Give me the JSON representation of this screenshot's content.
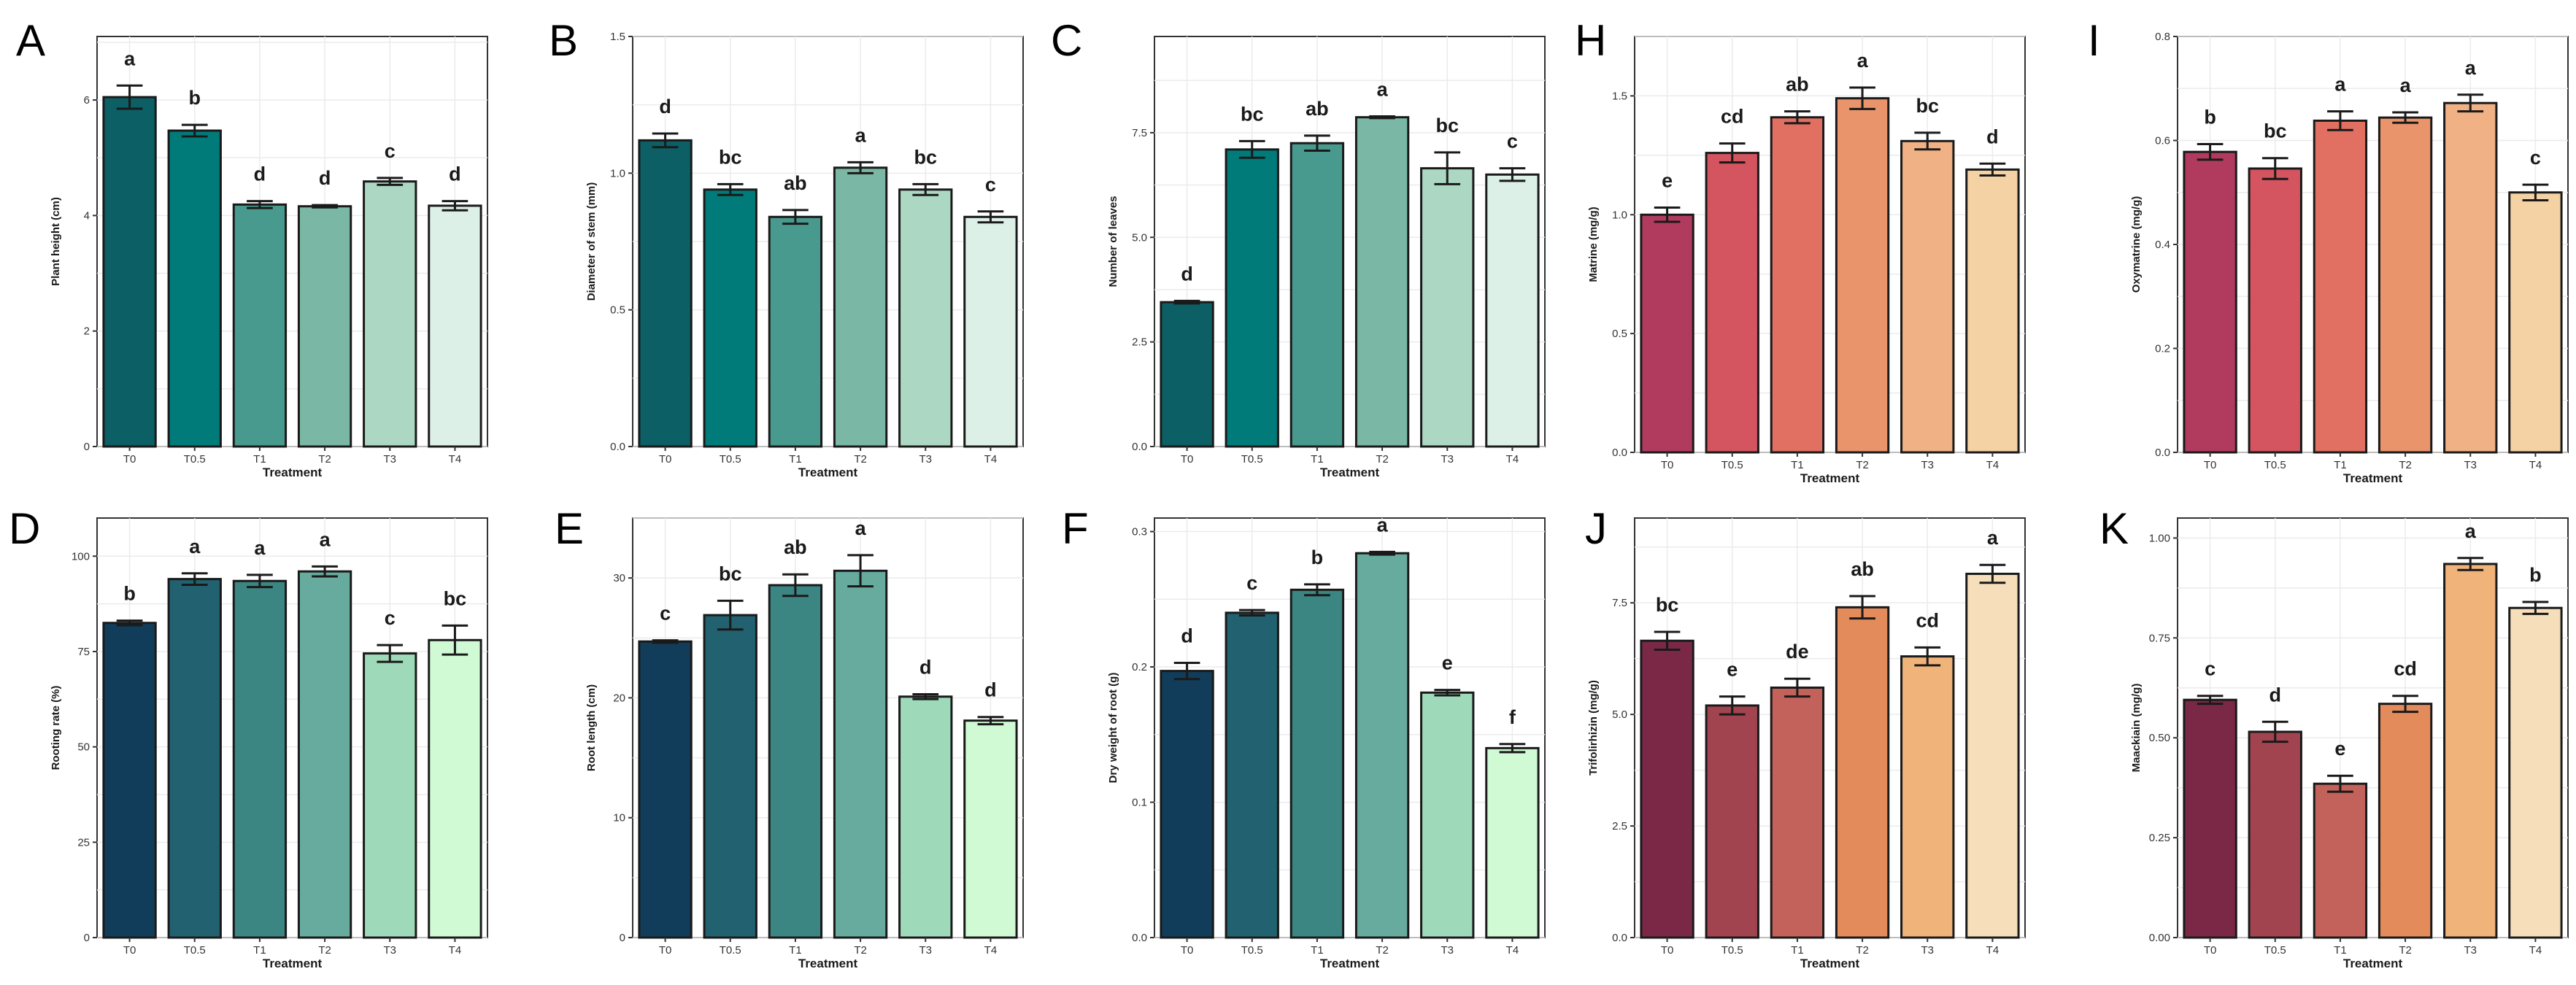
{
  "figure": {
    "x_axis_title": "Treatment",
    "categories": [
      "T0",
      "T0.5",
      "T1",
      "T2",
      "T3",
      "T4"
    ]
  },
  "chart_data": [
    {
      "panel": "A",
      "type": "bar",
      "ylabel": "Plant height (cm)",
      "xlabel": "Treatment",
      "categories": [
        "T0",
        "T0.5",
        "T1",
        "T2",
        "T3",
        "T4"
      ],
      "values": [
        6.05,
        5.47,
        4.19,
        4.16,
        4.59,
        4.17
      ],
      "errors": [
        0.2,
        0.1,
        0.06,
        0.02,
        0.06,
        0.08
      ],
      "labels": [
        "a",
        "b",
        "d",
        "d",
        "c",
        "d"
      ],
      "ylim": [
        0,
        7.1
      ],
      "yticks": [
        0,
        2,
        4,
        6
      ],
      "ytick_labels": [
        "0",
        "2",
        "4",
        "6"
      ],
      "colors": [
        "#0b5f65",
        "#007b7a",
        "#499a8e",
        "#7ab8a5",
        "#acd8c3",
        "#ddf0e7"
      ]
    },
    {
      "panel": "B",
      "type": "bar",
      "ylabel": "Diameter of stem (mm)",
      "xlabel": "Treatment",
      "categories": [
        "T0",
        "T0.5",
        "T1",
        "T2",
        "T3",
        "T4"
      ],
      "values": [
        1.12,
        0.94,
        0.84,
        1.02,
        0.94,
        0.84
      ],
      "errors": [
        0.025,
        0.02,
        0.025,
        0.02,
        0.02,
        0.02
      ],
      "labels": [
        "d",
        "bc",
        "ab",
        "a",
        "bc",
        "c"
      ],
      "ylim": [
        0,
        1.5
      ],
      "yticks": [
        0,
        0.5,
        1.0,
        1.5
      ],
      "ytick_labels": [
        "0.0",
        "0.5",
        "1.0",
        "1.5"
      ],
      "colors": [
        "#0b5f65",
        "#007b7a",
        "#499a8e",
        "#7ab8a5",
        "#acd8c3",
        "#ddf0e7"
      ]
    },
    {
      "panel": "C",
      "type": "bar",
      "ylabel": "Number of leaves",
      "xlabel": "Treatment",
      "categories": [
        "T0",
        "T0.5",
        "T1",
        "T2",
        "T3",
        "T4"
      ],
      "values": [
        3.45,
        7.1,
        7.25,
        7.87,
        6.65,
        6.5
      ],
      "errors": [
        0.03,
        0.2,
        0.18,
        0.02,
        0.38,
        0.15
      ],
      "labels": [
        "d",
        "bc",
        "ab",
        "a",
        "bc",
        "c"
      ],
      "ylim": [
        0,
        9.8
      ],
      "yticks": [
        0,
        2.5,
        5,
        7.5
      ],
      "ytick_labels": [
        "0.0",
        "2.5",
        "5.0",
        "7.5"
      ],
      "colors": [
        "#0b5f65",
        "#007b7a",
        "#499a8e",
        "#7ab8a5",
        "#acd8c3",
        "#ddf0e7"
      ]
    },
    {
      "panel": "H",
      "type": "bar",
      "ylabel": "Matrine (mg/g)",
      "xlabel": "Treatment",
      "categories": [
        "T0",
        "T0.5",
        "T1",
        "T2",
        "T3",
        "T4"
      ],
      "values": [
        1.0,
        1.26,
        1.41,
        1.49,
        1.31,
        1.19
      ],
      "errors": [
        0.03,
        0.04,
        0.025,
        0.045,
        0.035,
        0.025
      ],
      "labels": [
        "e",
        "cd",
        "ab",
        "a",
        "bc",
        "d"
      ],
      "ylim": [
        0,
        1.75
      ],
      "yticks": [
        0,
        0.5,
        1.0,
        1.5
      ],
      "ytick_labels": [
        "0.0",
        "0.5",
        "1.0",
        "1.5"
      ],
      "colors": [
        "#b13b5e",
        "#d4545f",
        "#e16f62",
        "#ea946c",
        "#f0b185",
        "#f5d2a4"
      ]
    },
    {
      "panel": "I",
      "type": "bar",
      "ylabel": "Oxymatrine (mg/g)",
      "xlabel": "Treatment",
      "categories": [
        "T0",
        "T0.5",
        "T1",
        "T2",
        "T3",
        "T4"
      ],
      "values": [
        0.578,
        0.546,
        0.638,
        0.644,
        0.672,
        0.5
      ],
      "errors": [
        0.015,
        0.02,
        0.018,
        0.01,
        0.016,
        0.015
      ],
      "labels": [
        "b",
        "bc",
        "a",
        "a",
        "a",
        "c"
      ],
      "ylim": [
        0,
        0.8
      ],
      "yticks": [
        0,
        0.2,
        0.4,
        0.6,
        0.8
      ],
      "ytick_labels": [
        "0.0",
        "0.2",
        "0.4",
        "0.6",
        "0.8"
      ],
      "colors": [
        "#b13b5e",
        "#d4545f",
        "#e16f62",
        "#ea946c",
        "#f0b185",
        "#f5d2a4"
      ]
    },
    {
      "panel": "D",
      "type": "bar",
      "ylabel": "Rooting rate (%)",
      "xlabel": "Treatment",
      "categories": [
        "T0",
        "T0.5",
        "T1",
        "T2",
        "T3",
        "T4"
      ],
      "values": [
        82.5,
        94.0,
        93.5,
        96.0,
        74.5,
        78.0
      ],
      "errors": [
        0.6,
        1.5,
        1.6,
        1.3,
        2.2,
        3.8
      ],
      "labels": [
        "b",
        "a",
        "a",
        "a",
        "c",
        "bc"
      ],
      "ylim": [
        0,
        110
      ],
      "yticks": [
        0,
        25,
        50,
        75,
        100
      ],
      "ytick_labels": [
        "0",
        "25",
        "50",
        "75",
        "100"
      ],
      "colors": [
        "#113d5a",
        "#216170",
        "#3b8583",
        "#66ab9e",
        "#9edab9",
        "#cffad4"
      ]
    },
    {
      "panel": "E",
      "type": "bar",
      "ylabel": "Root length (cm)",
      "xlabel": "Treatment",
      "categories": [
        "T0",
        "T0.5",
        "T1",
        "T2",
        "T3",
        "T4"
      ],
      "values": [
        24.7,
        26.9,
        29.4,
        30.6,
        20.1,
        18.1
      ],
      "errors": [
        0.1,
        1.2,
        0.9,
        1.3,
        0.2,
        0.3
      ],
      "labels": [
        "c",
        "bc",
        "ab",
        "a",
        "d",
        "d"
      ],
      "ylim": [
        0,
        35
      ],
      "yticks": [
        0,
        10,
        20,
        30
      ],
      "ytick_labels": [
        "0",
        "10",
        "20",
        "30"
      ],
      "colors": [
        "#113d5a",
        "#216170",
        "#3b8583",
        "#66ab9e",
        "#9edab9",
        "#cffad4"
      ]
    },
    {
      "panel": "F",
      "type": "bar",
      "ylabel": "Dry weight of root (g)",
      "xlabel": "Treatment",
      "categories": [
        "T0",
        "T0.5",
        "T1",
        "T2",
        "T3",
        "T4"
      ],
      "values": [
        0.197,
        0.24,
        0.257,
        0.284,
        0.181,
        0.14
      ],
      "errors": [
        0.006,
        0.002,
        0.004,
        0.001,
        0.002,
        0.003
      ],
      "labels": [
        "d",
        "c",
        "b",
        "a",
        "e",
        "f"
      ],
      "ylim": [
        0,
        0.31
      ],
      "yticks": [
        0,
        0.1,
        0.2,
        0.3
      ],
      "ytick_labels": [
        "0.0",
        "0.1",
        "0.2",
        "0.3"
      ],
      "colors": [
        "#113d5a",
        "#216170",
        "#3b8583",
        "#66ab9e",
        "#9edab9",
        "#cffad4"
      ]
    },
    {
      "panel": "J",
      "type": "bar",
      "ylabel": "Trifolirhizin (mg/g)",
      "xlabel": "Treatment",
      "categories": [
        "T0",
        "T0.5",
        "T1",
        "T2",
        "T3",
        "T4"
      ],
      "values": [
        6.65,
        5.2,
        5.6,
        7.4,
        6.3,
        8.15
      ],
      "errors": [
        0.2,
        0.2,
        0.2,
        0.25,
        0.2,
        0.2
      ],
      "labels": [
        "bc",
        "e",
        "de",
        "ab",
        "cd",
        "a"
      ],
      "ylim": [
        0,
        9.4
      ],
      "yticks": [
        0,
        2.5,
        5,
        7.5
      ],
      "ytick_labels": [
        "0.0",
        "2.5",
        "5.0",
        "7.5"
      ],
      "colors": [
        "#7a2846",
        "#a1444f",
        "#c3625a",
        "#e38b5b",
        "#f0b37a",
        "#f7deba"
      ]
    },
    {
      "panel": "K",
      "type": "bar",
      "ylabel": "Maackiain (mg/g)",
      "xlabel": "Treatment",
      "categories": [
        "T0",
        "T0.5",
        "T1",
        "T2",
        "T3",
        "T4"
      ],
      "values": [
        0.595,
        0.515,
        0.385,
        0.585,
        0.935,
        0.825
      ],
      "errors": [
        0.01,
        0.025,
        0.02,
        0.02,
        0.015,
        0.015
      ],
      "labels": [
        "c",
        "d",
        "e",
        "cd",
        "a",
        "b"
      ],
      "ylim": [
        0,
        1.05
      ],
      "yticks": [
        0,
        0.25,
        0.5,
        0.75,
        1.0
      ],
      "ytick_labels": [
        "0.00",
        "0.25",
        "0.50",
        "0.75",
        "1.00"
      ],
      "colors": [
        "#7a2846",
        "#a1444f",
        "#c3625a",
        "#e38b5b",
        "#f0b37a",
        "#f7deba"
      ]
    }
  ]
}
